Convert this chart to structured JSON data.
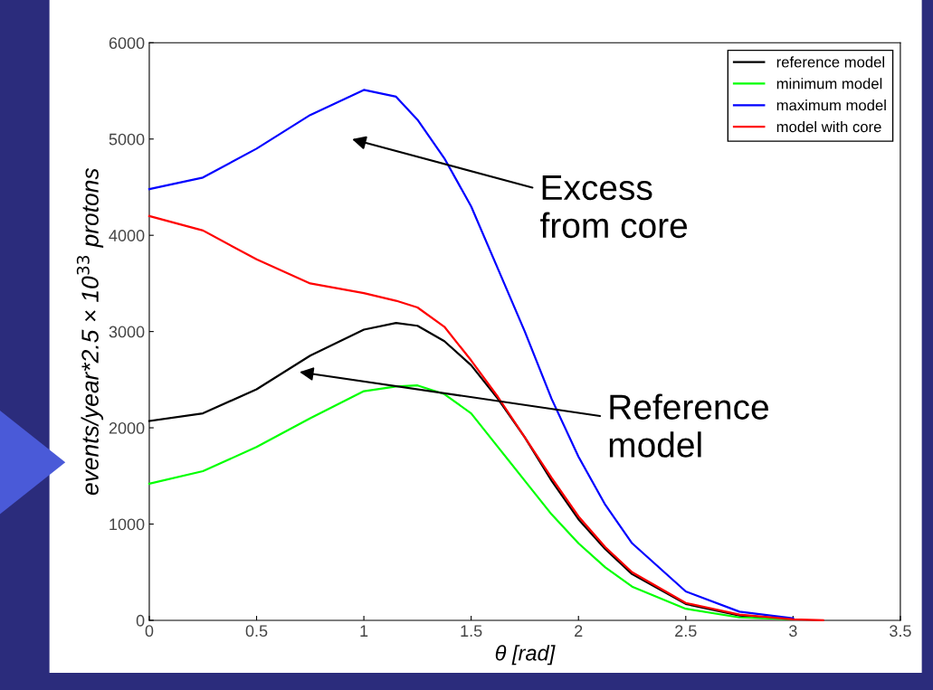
{
  "chart_data": {
    "type": "line",
    "xlabel": "θ [rad]",
    "ylabel": "events/year*2.5 × 10$^{33}$ protons",
    "xlim": [
      0,
      3.5
    ],
    "ylim": [
      0,
      6000
    ],
    "xticks": [
      0,
      0.5,
      1,
      1.5,
      2,
      2.5,
      3,
      3.5
    ],
    "yticks": [
      0,
      1000,
      2000,
      3000,
      4000,
      5000,
      6000
    ],
    "x": [
      0,
      0.25,
      0.5,
      0.75,
      1.0,
      1.15,
      1.25,
      1.375,
      1.5,
      1.625,
      1.75,
      1.875,
      2.0,
      2.125,
      2.25,
      2.5,
      2.75,
      3.0,
      3.14
    ],
    "series": [
      {
        "name": "reference model",
        "color": "#000000",
        "values": [
          2070,
          2150,
          2400,
          2750,
          3020,
          3090,
          3060,
          2900,
          2650,
          2300,
          1900,
          1450,
          1050,
          740,
          480,
          170,
          50,
          10,
          null
        ]
      },
      {
        "name": "minimum model",
        "color": "#00ff00",
        "values": [
          1420,
          1550,
          1800,
          2100,
          2380,
          2430,
          2440,
          2350,
          2150,
          1800,
          1450,
          1100,
          800,
          550,
          350,
          120,
          30,
          10,
          null
        ]
      },
      {
        "name": "maximum model",
        "color": "#0000ff",
        "values": [
          4480,
          4600,
          4900,
          5250,
          5510,
          5440,
          5200,
          4800,
          4300,
          3650,
          3000,
          2300,
          1700,
          1200,
          800,
          300,
          90,
          20,
          null
        ]
      },
      {
        "name": "model with core",
        "color": "#ff0000",
        "values": [
          4200,
          4050,
          3750,
          3500,
          3400,
          3320,
          3250,
          3050,
          2700,
          2320,
          1900,
          1480,
          1080,
          760,
          500,
          180,
          60,
          10,
          0
        ]
      }
    ],
    "legend": "top right",
    "grid": false,
    "annotations": [
      "Excess\nfrom core",
      "Reference\nmodel"
    ]
  }
}
